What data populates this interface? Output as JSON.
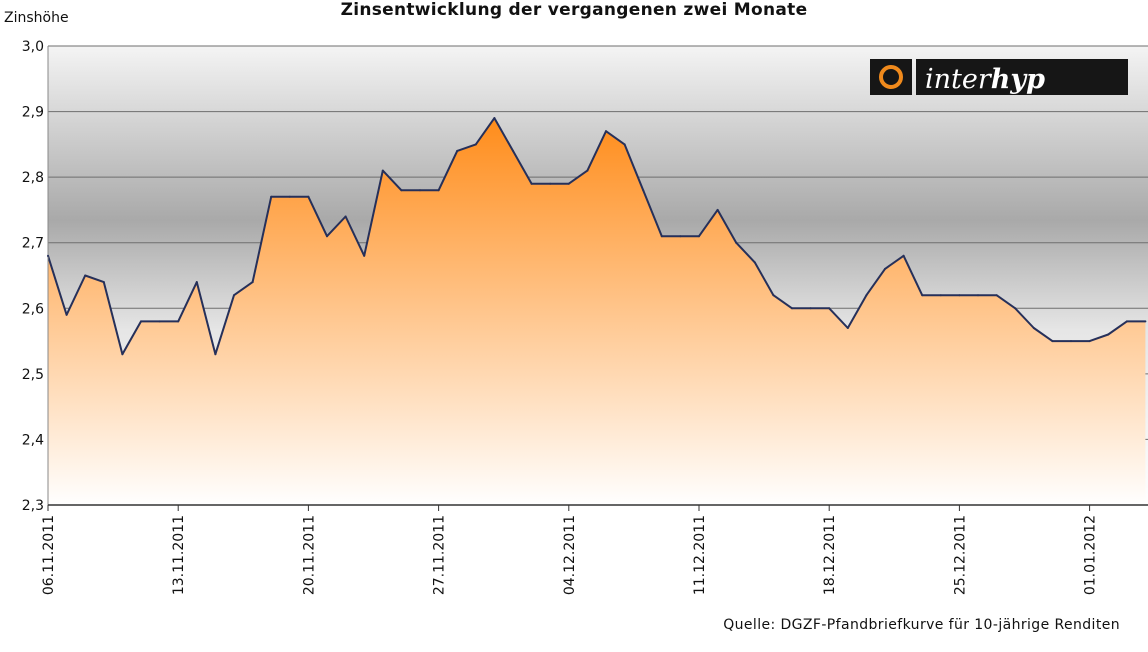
{
  "title": "Zinsentwicklung der vergangenen zwei Monate",
  "logo": {
    "text_light": "inter",
    "text_bold": "hyp",
    "icon": "ring-icon"
  },
  "source": "Quelle:  DGZF-Pfandbriefkurve für 10-jährige Renditen",
  "colors": {
    "line": "#26305a",
    "fill_top": "#ff8c1a",
    "fill_bottom": "#ffffff",
    "grid": "#6e6e6e",
    "logo_bg": "#161616",
    "logo_ring": "#f08a1c"
  },
  "chart_data": {
    "type": "area",
    "ylabel": "Zinshöhe",
    "xlabel": "",
    "ylim": [
      2.3,
      3.0
    ],
    "y_ticks": [
      "2,3",
      "2,4",
      "2,5",
      "2,6",
      "2,7",
      "2,8",
      "2,9",
      "3,0"
    ],
    "x_tick_labels": [
      "06.11.2011",
      "13.11.2011",
      "20.11.2011",
      "27.11.2011",
      "04.12.2011",
      "11.12.2011",
      "18.12.2011",
      "25.12.2011",
      "01.01.2012"
    ],
    "grid": true,
    "series": [
      {
        "values": [
          2.68,
          2.59,
          2.65,
          2.64,
          2.53,
          2.58,
          2.58,
          2.58,
          2.64,
          2.53,
          2.62,
          2.64,
          2.77,
          2.77,
          2.77,
          2.71,
          2.74,
          2.68,
          2.81,
          2.78,
          2.78,
          2.78,
          2.84,
          2.85,
          2.89,
          2.84,
          2.79,
          2.79,
          2.79,
          2.81,
          2.87,
          2.85,
          2.78,
          2.71,
          2.71,
          2.71,
          2.75,
          2.7,
          2.67,
          2.62,
          2.6,
          2.6,
          2.6,
          2.57,
          2.62,
          2.66,
          2.68,
          2.62,
          2.62,
          2.62,
          2.62,
          2.62,
          2.6,
          2.57,
          2.55,
          2.55,
          2.55,
          2.56,
          2.58,
          2.58
        ]
      }
    ]
  }
}
